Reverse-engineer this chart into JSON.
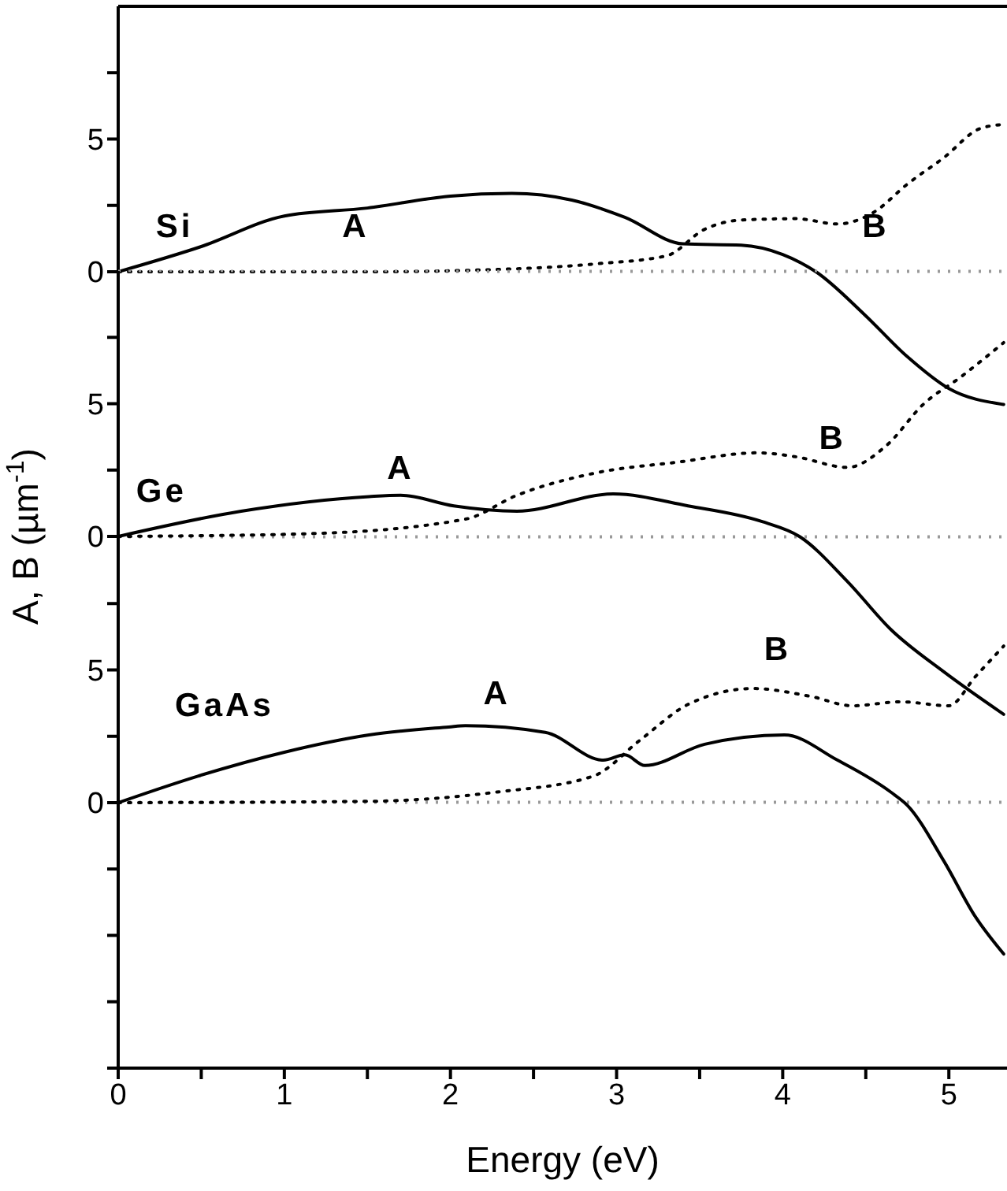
{
  "chart_data": [
    {
      "type": "line",
      "tick_labels": "y",
      "xlim": [
        0,
        5.35
      ],
      "ylim": [
        -10,
        10
      ],
      "yticks": [
        {
          "value": 0,
          "label": "0"
        },
        {
          "value": 2.5,
          "label": null
        },
        {
          "value": 5,
          "label": "5"
        },
        {
          "value": 7.5,
          "label": null
        }
      ],
      "series": [
        {
          "color": "#000000",
          "line_style": "solid",
          "x": [
            0,
            0.5,
            1.0,
            1.5,
            2.0,
            2.37,
            2.73,
            3.05,
            3.4,
            3.75,
            4.0,
            4.2,
            4.49,
            4.75,
            5.0,
            5.33
          ],
          "values": [
            0,
            0.95,
            2.1,
            2.4,
            2.85,
            2.95,
            2.7,
            2.05,
            1.05,
            1.0,
            0.65,
            0,
            -1.6,
            -3.2,
            -4.4,
            -5.0
          ]
        },
        {
          "color": "#000000",
          "line_style": "dotted",
          "x": [
            0,
            1.5,
            2.08,
            2.88,
            3.3,
            3.53,
            3.75,
            4.08,
            4.33,
            4.55,
            4.75,
            4.97,
            5.19,
            5.33
          ],
          "values": [
            0,
            0,
            0.05,
            0.3,
            0.6,
            1.6,
            1.95,
            2.0,
            1.8,
            2.25,
            3.3,
            4.3,
            5.4,
            5.55
          ]
        }
      ],
      "ref_lines": [
        {
          "axis": "y",
          "value": 0,
          "color": "#999999",
          "line_style": "dotted"
        }
      ],
      "annotations": [
        "Si",
        "A",
        "B"
      ]
    },
    {
      "type": "line",
      "tick_labels": "y",
      "ylabel": "A, B (µm$^{-1}$)",
      "xlim": [
        0,
        5.35
      ],
      "ylim": [
        -10,
        10
      ],
      "yticks": [
        {
          "value": 0,
          "label": "0"
        },
        {
          "value": 2.5,
          "label": null
        },
        {
          "value": 5,
          "label": "5"
        },
        {
          "value": 7.5,
          "label": null
        }
      ],
      "series": [
        {
          "color": "#000000",
          "line_style": "solid",
          "x": [
            0,
            0.74,
            1.51,
            1.7,
            2.02,
            2.4,
            2.98,
            3.43,
            3.88,
            4.1,
            4.39,
            4.65,
            4.97,
            5.33
          ],
          "values": [
            0,
            0.95,
            1.5,
            1.55,
            1.15,
            0.95,
            1.6,
            1.15,
            0.55,
            0,
            -1.7,
            -3.5,
            -5.1,
            -6.7
          ]
        },
        {
          "color": "#000000",
          "line_style": "dotted",
          "x": [
            0,
            1.13,
            2.09,
            2.4,
            2.88,
            3.37,
            3.85,
            4.08,
            4.39,
            4.62,
            4.85,
            5.07,
            5.33
          ],
          "values": [
            0,
            0.1,
            0.65,
            1.55,
            2.4,
            2.8,
            3.15,
            3.0,
            2.6,
            3.4,
            5.0,
            6.0,
            7.3
          ]
        }
      ],
      "ref_lines": [
        {
          "axis": "y",
          "value": 0,
          "color": "#999999",
          "line_style": "dotted"
        }
      ],
      "annotations": [
        "Ge",
        "A",
        "B"
      ]
    },
    {
      "type": "line",
      "xlabel": "Energy (eV)",
      "xlim": [
        0,
        5.35
      ],
      "xticks": [
        0,
        {
          "value": 0.5,
          "label": null
        },
        1,
        {
          "value": 1.5,
          "label": null
        },
        2,
        {
          "value": 2.5,
          "label": null
        },
        3,
        {
          "value": 3.5,
          "label": null
        },
        4,
        {
          "value": 4.5,
          "label": null
        },
        5
      ],
      "ylim": [
        -10,
        10
      ],
      "yticks": [
        {
          "value": -10,
          "label": null
        },
        {
          "value": -7.5,
          "label": null
        },
        {
          "value": -5,
          "label": null
        },
        {
          "value": -2.5,
          "label": null
        },
        {
          "value": 0,
          "label": "0"
        },
        {
          "value": 2.5,
          "label": null
        },
        {
          "value": 5,
          "label": "5"
        },
        {
          "value": 7.5,
          "label": null
        }
      ],
      "series": [
        {
          "color": "#000000",
          "line_style": "solid",
          "x": [
            0,
            0.48,
            1.0,
            1.51,
            1.99,
            2.09,
            2.57,
            2.92,
            3.05,
            3.17,
            3.53,
            4.01,
            4.33,
            4.65,
            4.75,
            4.97,
            5.16,
            5.33
          ],
          "values": [
            0,
            1.0,
            1.9,
            2.55,
            2.85,
            2.9,
            2.65,
            1.6,
            1.8,
            1.4,
            2.2,
            2.55,
            1.6,
            0.4,
            -0.1,
            -2.2,
            -4.3,
            -5.7
          ]
        },
        {
          "color": "#000000",
          "line_style": "dotted",
          "x": [
            0,
            1.5,
            2.28,
            2.86,
            3.14,
            3.43,
            3.82,
            4.17,
            4.42,
            4.71,
            5.0,
            5.16,
            5.33
          ],
          "values": [
            0,
            0.05,
            0.4,
            1.0,
            2.35,
            3.7,
            4.3,
            4.0,
            3.65,
            3.8,
            3.65,
            4.75,
            5.9
          ]
        }
      ],
      "ref_lines": [
        {
          "axis": "y",
          "value": 0,
          "color": "#999999",
          "line_style": "dotted"
        }
      ],
      "annotations": [
        "GaAs",
        "A",
        "B"
      ]
    }
  ]
}
